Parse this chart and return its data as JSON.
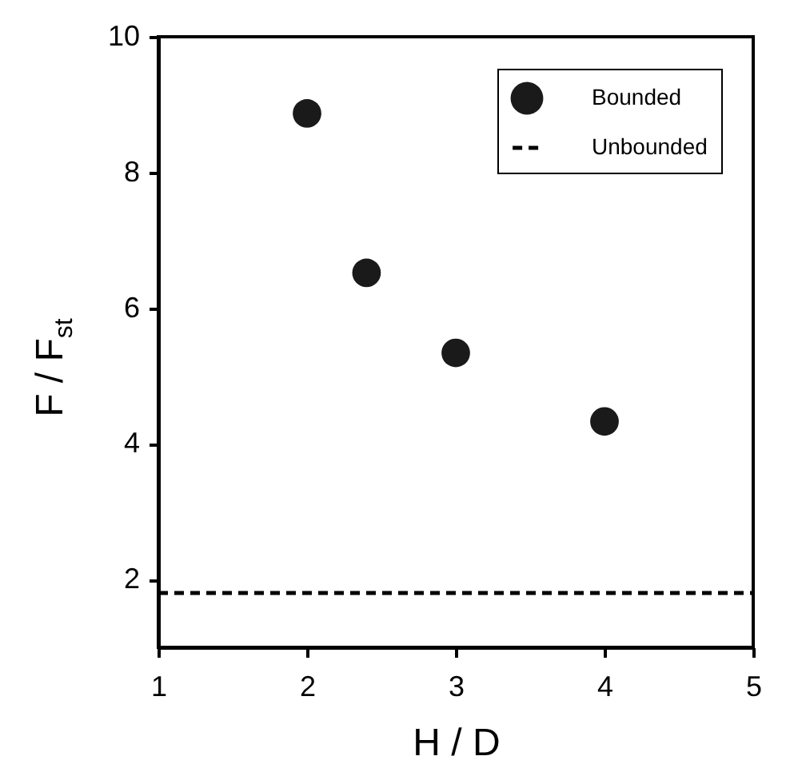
{
  "chart_data": {
    "type": "scatter",
    "xlabel": "H / D",
    "ylabel": "F / F$_{st}$",
    "xlim": [
      1,
      5
    ],
    "xticks": [
      1,
      2,
      3,
      4,
      5
    ],
    "ylim": [
      1,
      10
    ],
    "yticks": [
      2,
      4,
      6,
      8,
      10
    ],
    "grid": false,
    "legend": "top right",
    "series": [
      {
        "name": "Bounded",
        "marker": "circle",
        "color": "#1a1a1a",
        "x": [
          2,
          2.4,
          3,
          4
        ],
        "values": [
          8.87,
          6.52,
          5.34,
          4.33
        ]
      },
      {
        "name": "Unbounded",
        "type": "line",
        "line_style": "dashed",
        "color": "#000000",
        "x": [
          1,
          5
        ],
        "values": [
          1.8,
          1.8
        ]
      }
    ]
  }
}
